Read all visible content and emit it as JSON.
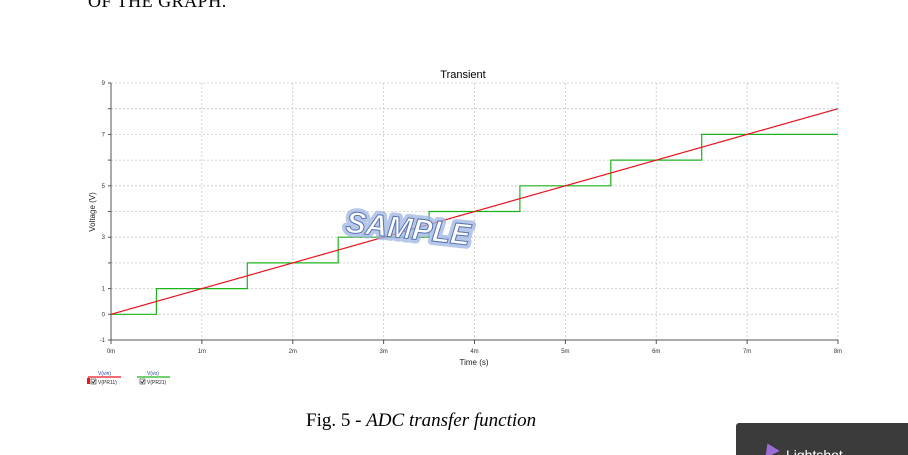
{
  "page": {
    "heading_fragment": "OF THE GRAPH.",
    "caption_prefix": "Fig. 5 - ",
    "caption_text": "ADC transfer function",
    "toast_label": "Lightshot"
  },
  "chart_data": {
    "type": "line",
    "title": "Transient",
    "xlabel": "Time (s)",
    "ylabel": "Voltage (V)",
    "xlim": [
      0,
      8
    ],
    "ylim": [
      -1,
      9
    ],
    "x_ticks": [
      0,
      1,
      2,
      3,
      4,
      5,
      6,
      7,
      8
    ],
    "x_tick_labels": [
      "0m",
      "1m",
      "2m",
      "3m",
      "4m",
      "5m",
      "6m",
      "7m",
      "8m"
    ],
    "y_ticks": [
      -1,
      0,
      1,
      3,
      5,
      7,
      9
    ],
    "y_tick_labels": [
      "-1",
      "0",
      "1",
      "3",
      "5",
      "7",
      "9"
    ],
    "grid": true,
    "watermark": "SAMPLE",
    "series": [
      {
        "name": "V(PR11)",
        "legend_header": "V(vin)",
        "color": "#e8141e",
        "x": [
          0,
          8
        ],
        "y": [
          0,
          8
        ]
      },
      {
        "name": "V(PR21)",
        "legend_header": "V(vo)",
        "color": "#1cb41c",
        "x": [
          0,
          0.5,
          0.5,
          1.5,
          1.5,
          2.5,
          2.5,
          3.5,
          3.5,
          4.5,
          4.5,
          5.5,
          5.5,
          6.5,
          6.5,
          8
        ],
        "y": [
          0,
          0,
          1,
          1,
          2,
          2,
          3,
          3,
          4,
          4,
          5,
          5,
          6,
          6,
          7,
          7
        ]
      }
    ]
  }
}
